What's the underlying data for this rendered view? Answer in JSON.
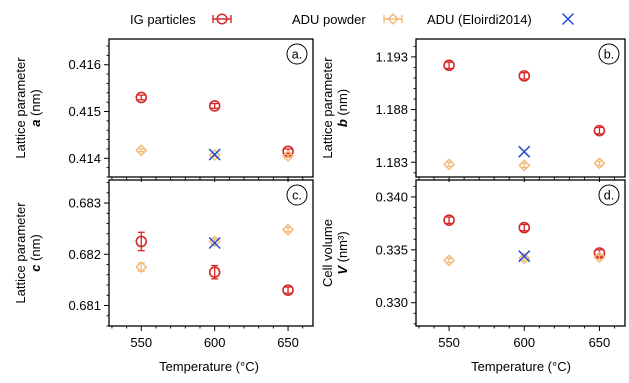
{
  "legend": [
    {
      "label": "IG particles",
      "color": "#d62728",
      "marker": "circle-errorbar"
    },
    {
      "label": "ADU powder",
      "color": "#f5b97a",
      "marker": "diamond-errorbar"
    },
    {
      "label": "ADU (Eloirdi2014)",
      "color": "#1f4fd6",
      "marker": "x"
    }
  ],
  "colors": {
    "ig": "#d62728",
    "adu": "#f5b97a",
    "lit": "#1f4fd6"
  },
  "chart_data": [
    {
      "panel": "a.",
      "type": "scatter",
      "ylabel_line1": "Lattice parameter",
      "ylabel_var": "a",
      "ylabel_unit": " (nm)",
      "xlim": [
        528,
        667
      ],
      "ylim": [
        0.4136,
        0.41655
      ],
      "yticks": [
        0.414,
        0.415,
        0.416
      ],
      "yticklabels": [
        "0.414",
        "0.415",
        "0.416"
      ],
      "series": [
        {
          "name": "IG particles",
          "key": "ig",
          "x": [
            550,
            600,
            650
          ],
          "y": [
            0.4153,
            0.41512,
            0.41415
          ],
          "err": [
            5e-05,
            5e-05,
            5e-05
          ]
        },
        {
          "name": "ADU powder",
          "key": "adu",
          "x": [
            550,
            600,
            650
          ],
          "y": [
            0.41417,
            0.41407,
            0.41405
          ],
          "err": [
            3e-05,
            3e-05,
            3e-05
          ]
        },
        {
          "name": "ADU (Eloirdi2014)",
          "key": "lit",
          "x": [
            600
          ],
          "y": [
            0.41408
          ]
        }
      ]
    },
    {
      "panel": "b.",
      "type": "scatter",
      "ylabel_line1": "Lattice parameter",
      "ylabel_var": "b",
      "ylabel_unit": " (nm)",
      "xlim": [
        528,
        667
      ],
      "ylim": [
        1.1816,
        1.1947
      ],
      "yticks": [
        1.183,
        1.188,
        1.193
      ],
      "yticklabels": [
        "1.183",
        "1.188",
        "1.193"
      ],
      "series": [
        {
          "name": "IG particles",
          "key": "ig",
          "x": [
            550,
            600,
            650
          ],
          "y": [
            1.1922,
            1.1912,
            1.186
          ],
          "err": [
            0.0003,
            0.0003,
            0.0003
          ]
        },
        {
          "name": "ADU powder",
          "key": "adu",
          "x": [
            550,
            600,
            650
          ],
          "y": [
            1.1828,
            1.1827,
            1.1829
          ],
          "err": [
            0.0002,
            0.0002,
            0.0002
          ]
        },
        {
          "name": "ADU (Eloirdi2014)",
          "key": "lit",
          "x": [
            600
          ],
          "y": [
            1.184
          ]
        }
      ]
    },
    {
      "panel": "c.",
      "type": "scatter",
      "ylabel_line1": "Lattice parameter",
      "ylabel_var": "c",
      "ylabel_unit": " (nm)",
      "xlim": [
        528,
        667
      ],
      "ylim": [
        0.6806,
        0.68345
      ],
      "yticks": [
        0.681,
        0.682,
        0.683
      ],
      "yticklabels": [
        "0.681",
        "0.682",
        "0.683"
      ],
      "series": [
        {
          "name": "IG particles",
          "key": "ig",
          "x": [
            550,
            600,
            650
          ],
          "y": [
            0.68225,
            0.68165,
            0.6813
          ],
          "err": [
            0.00018,
            0.00013,
            6e-05
          ]
        },
        {
          "name": "ADU powder",
          "key": "adu",
          "x": [
            550,
            600,
            650
          ],
          "y": [
            0.68175,
            0.68225,
            0.68248
          ],
          "err": [
            8e-05,
            5e-05,
            4e-05
          ]
        },
        {
          "name": "ADU (Eloirdi2014)",
          "key": "lit",
          "x": [
            600
          ],
          "y": [
            0.68222
          ]
        }
      ]
    },
    {
      "panel": "d.",
      "type": "scatter",
      "ylabel_line1": "Cell volume",
      "ylabel_var": "V",
      "ylabel_unit": " (nm³)",
      "xlim": [
        528,
        667
      ],
      "ylim": [
        0.3278,
        0.3416
      ],
      "yticks": [
        0.33,
        0.335,
        0.34
      ],
      "yticklabels": [
        "0.330",
        "0.335",
        "0.340"
      ],
      "series": [
        {
          "name": "IG particles",
          "key": "ig",
          "x": [
            550,
            600,
            650
          ],
          "y": [
            0.3378,
            0.3371,
            0.3347
          ],
          "err": [
            0.0003,
            0.0003,
            0.0003
          ]
        },
        {
          "name": "ADU powder",
          "key": "adu",
          "x": [
            550,
            600,
            650
          ],
          "y": [
            0.334,
            0.3342,
            0.3343
          ],
          "err": [
            0.0002,
            0.0002,
            0.0002
          ]
        },
        {
          "name": "ADU (Eloirdi2014)",
          "key": "lit",
          "x": [
            600
          ],
          "y": [
            0.3344
          ]
        }
      ]
    }
  ],
  "xticks": [
    550,
    600,
    650
  ],
  "xticklabels": [
    "550",
    "600",
    "650"
  ],
  "xlabel": "Temperature (°C)"
}
